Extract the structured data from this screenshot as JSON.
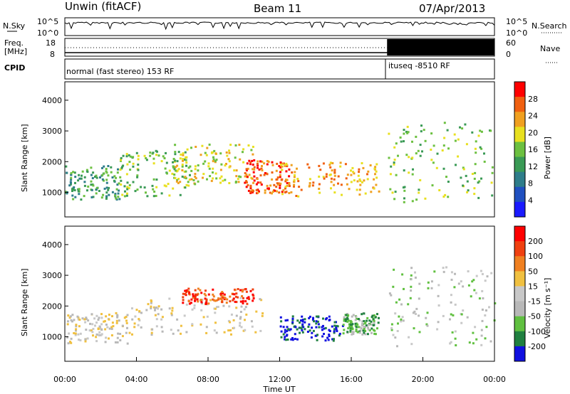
{
  "header": {
    "site": "Unwin (fitACF)",
    "beam": "Beam 11",
    "date": "07/Apr/2013"
  },
  "left_labels": {
    "nsky": "N.Sky",
    "freq_line1": "Freq.",
    "freq_line2": "[MHz]",
    "cpid": "CPID"
  },
  "right_labels": {
    "nsearch": "N.Search",
    "nave": "Nave"
  },
  "noise_panel": {
    "y_ticks_left": [
      "10^5",
      "10^0"
    ],
    "y_ticks_right": [
      "10^5",
      "10^0"
    ]
  },
  "freq_panel": {
    "y_ticks_left": [
      "18",
      "8"
    ],
    "y_ticks_right": [
      "60",
      "0"
    ]
  },
  "cpid_panel": {
    "mode1": "normal (fast stereo) 153 RF",
    "mode2": "ituseq -8510 RF",
    "switch_hour": 18.0
  },
  "colors": {
    "power_scale": [
      "#1a1aff",
      "#2050c0",
      "#2e7d8a",
      "#3a9a55",
      "#6cc040",
      "#e8e020",
      "#f0a020",
      "#f06010",
      "#ff0000"
    ],
    "velocity_scale": [
      "#1010e0",
      "#208040",
      "#60c040",
      "#b8b8b8",
      "#c8c8c8",
      "#f0c040",
      "#f08020",
      "#f04010",
      "#ff0000"
    ],
    "ground_scatter": "#c0c0c0"
  },
  "chart_data": [
    {
      "type": "heatmap",
      "name": "power",
      "ylabel": "Slant Range [km]",
      "y_ticks": [
        1000,
        2000,
        3000,
        4000
      ],
      "ylim": [
        200,
        4600
      ],
      "xlim": [
        0,
        24
      ],
      "colorbar": {
        "label": "Power [dB]",
        "ticks": [
          "28",
          "24",
          "20",
          "16",
          "12",
          "8",
          "4"
        ]
      },
      "bands": [
        {
          "t0": 0,
          "t1": 3,
          "r0": 800,
          "r1": 1900,
          "level": 3
        },
        {
          "t0": 3,
          "t1": 7,
          "r0": 900,
          "r1": 2400,
          "level": 4
        },
        {
          "t0": 6,
          "t1": 10.5,
          "r0": 1300,
          "r1": 2600,
          "level": 5
        },
        {
          "t0": 10,
          "t1": 12.5,
          "r0": 1000,
          "r1": 2100,
          "level": 7
        },
        {
          "t0": 12,
          "t1": 17.5,
          "r0": 900,
          "r1": 2000,
          "level": 6
        },
        {
          "t0": 18,
          "t1": 24,
          "r0": 700,
          "r1": 3300,
          "level": 4
        }
      ]
    },
    {
      "type": "heatmap",
      "name": "velocity",
      "ylabel": "Slant Range [km]",
      "xlabel": "Time UT",
      "y_ticks": [
        1000,
        2000,
        3000,
        4000
      ],
      "ylim": [
        200,
        4600
      ],
      "xlim": [
        0,
        24
      ],
      "x_ticks": [
        "00:00",
        "04:00",
        "08:00",
        "12:00",
        "16:00",
        "20:00",
        "00:00"
      ],
      "colorbar": {
        "label": "Velocity [m s⁻¹]",
        "ticks": [
          "200",
          "100",
          "50",
          "15",
          "-15",
          "-50",
          "-100",
          "-200"
        ]
      },
      "bands": [
        {
          "t0": 0,
          "t1": 3.5,
          "r0": 800,
          "r1": 1800,
          "level": 4
        },
        {
          "t0": 3.5,
          "t1": 11,
          "r0": 1100,
          "r1": 2300,
          "level": 4
        },
        {
          "t0": 6.5,
          "t1": 10.5,
          "r0": 2100,
          "r1": 2600,
          "level": 7
        },
        {
          "t0": 12,
          "t1": 15.5,
          "r0": 900,
          "r1": 1700,
          "level": 0
        },
        {
          "t0": 15.5,
          "t1": 17.5,
          "r0": 1100,
          "r1": 1800,
          "level": 2
        },
        {
          "t0": 18,
          "t1": 24,
          "r0": 700,
          "r1": 3300,
          "level": 3
        }
      ]
    }
  ]
}
